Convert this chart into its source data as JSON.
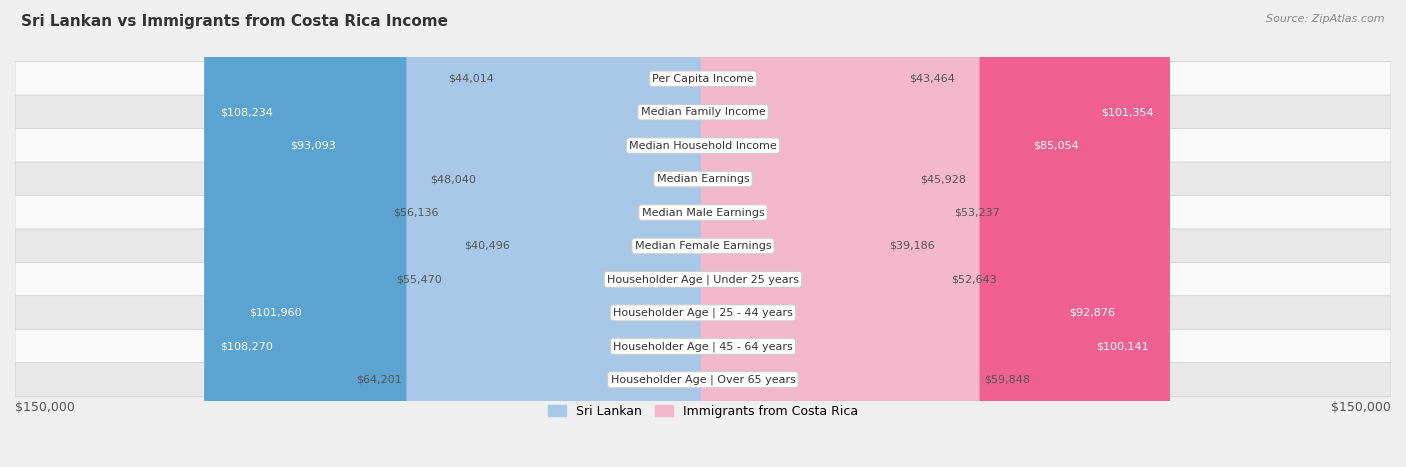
{
  "title": "Sri Lankan vs Immigrants from Costa Rica Income",
  "source": "Source: ZipAtlas.com",
  "categories": [
    "Per Capita Income",
    "Median Family Income",
    "Median Household Income",
    "Median Earnings",
    "Median Male Earnings",
    "Median Female Earnings",
    "Householder Age | Under 25 years",
    "Householder Age | 25 - 44 years",
    "Householder Age | 45 - 64 years",
    "Householder Age | Over 65 years"
  ],
  "sri_lankan": [
    44014,
    108234,
    93093,
    48040,
    56136,
    40496,
    55470,
    101960,
    108270,
    64201
  ],
  "costa_rica": [
    43464,
    101354,
    85054,
    45928,
    53237,
    39186,
    52643,
    92876,
    100141,
    59848
  ],
  "sri_lankan_labels": [
    "$44,014",
    "$108,234",
    "$93,093",
    "$48,040",
    "$56,136",
    "$40,496",
    "$55,470",
    "$101,960",
    "$108,270",
    "$64,201"
  ],
  "costa_rica_labels": [
    "$43,464",
    "$101,354",
    "$85,054",
    "$45,928",
    "$53,237",
    "$39,186",
    "$52,643",
    "$92,876",
    "$100,141",
    "$59,848"
  ],
  "sl_color_light": "#a8c8e8",
  "sl_color_dark": "#5ba3d0",
  "cr_color_light": "#f4b8cc",
  "cr_color_dark": "#f06090",
  "inside_label_threshold": 65000,
  "max_value": 150000,
  "bar_height": 0.52,
  "background_color": "#f0f0f0",
  "row_bg_even": "#fafafa",
  "row_bg_odd": "#e8e8e8",
  "xlabel_left": "$150,000",
  "xlabel_right": "$150,000",
  "legend_sri_lankan": "Sri Lankan",
  "legend_costa_rica": "Immigrants from Costa Rica",
  "title_fontsize": 11,
  "label_fontsize": 8,
  "cat_fontsize": 8
}
